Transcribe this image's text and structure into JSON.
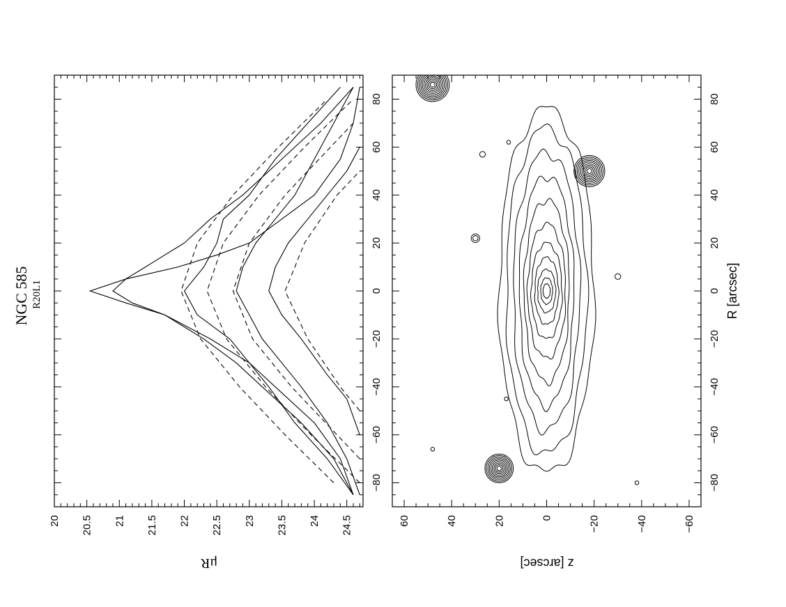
{
  "figure": {
    "title": "NGC 585",
    "subtitle": "R20L1"
  },
  "chart_data": [
    {
      "type": "line",
      "panel": "surface-brightness-profiles",
      "x_label": "R [arcsec]",
      "y_label": "μR",
      "xlim": [
        -90,
        90
      ],
      "ylim": [
        20,
        24.75
      ],
      "y_inverted": true,
      "x_ticks": [
        -80,
        -60,
        -40,
        -20,
        0,
        20,
        40,
        60,
        80
      ],
      "y_ticks": [
        20,
        20.5,
        21,
        21.5,
        22,
        22.5,
        23,
        23.5,
        24,
        24.5
      ],
      "grid": false,
      "series": [
        {
          "style": "solid",
          "x": [
            -85,
            -70,
            -55,
            -40,
            -30,
            -20,
            -10,
            -5,
            0,
            5,
            10,
            15,
            20,
            30,
            40,
            55,
            70,
            85
          ],
          "y": [
            24.6,
            24.4,
            24.0,
            23.4,
            23.0,
            22.4,
            21.7,
            21.1,
            20.55,
            21.1,
            21.9,
            22.5,
            23.0,
            23.5,
            24.0,
            24.4,
            24.6,
            24.7
          ]
        },
        {
          "style": "solid",
          "x": [
            -85,
            -70,
            -55,
            -40,
            -30,
            -20,
            -10,
            -5,
            0,
            5,
            10,
            15,
            20,
            30,
            40,
            55,
            70,
            85
          ],
          "y": [
            24.6,
            24.3,
            23.8,
            23.2,
            22.8,
            22.3,
            21.7,
            21.2,
            20.9,
            21.1,
            21.4,
            21.7,
            22.0,
            22.4,
            22.9,
            23.5,
            24.1,
            24.6
          ]
        },
        {
          "style": "solid",
          "x": [
            -85,
            -70,
            -55,
            -40,
            -30,
            -20,
            -10,
            0,
            10,
            20,
            30,
            40,
            55,
            70,
            85
          ],
          "y": [
            24.6,
            24.2,
            23.7,
            23.3,
            23.0,
            22.7,
            22.2,
            22.0,
            22.3,
            22.5,
            22.6,
            23.0,
            23.4,
            23.9,
            24.4
          ]
        },
        {
          "style": "solid",
          "x": [
            -85,
            -70,
            -55,
            -40,
            -30,
            -20,
            -10,
            0,
            10,
            20,
            30,
            40,
            55,
            70,
            85
          ],
          "y": [
            24.7,
            24.5,
            24.2,
            23.8,
            23.5,
            23.2,
            23.0,
            22.8,
            22.9,
            23.1,
            23.4,
            23.7,
            24.0,
            24.3,
            24.6
          ]
        },
        {
          "style": "solid",
          "x": [
            -60,
            -45,
            -35,
            -20,
            -10,
            0,
            10,
            20,
            30,
            40,
            50,
            60
          ],
          "y": [
            24.7,
            24.5,
            24.2,
            23.8,
            23.5,
            23.3,
            23.4,
            23.6,
            23.9,
            24.2,
            24.5,
            24.7
          ]
        },
        {
          "style": "dashed",
          "x": [
            -80,
            -60,
            -40,
            -20,
            0,
            20,
            40,
            60,
            80
          ],
          "y": [
            24.3,
            23.55,
            22.85,
            22.25,
            21.95,
            22.2,
            22.75,
            23.45,
            24.2
          ]
        },
        {
          "style": "dashed",
          "x": [
            -80,
            -60,
            -40,
            -20,
            0,
            20,
            40,
            60,
            80
          ],
          "y": [
            24.7,
            23.95,
            23.25,
            22.65,
            22.35,
            22.6,
            23.15,
            23.85,
            24.6
          ]
        },
        {
          "style": "dashed",
          "x": [
            -70,
            -60,
            -40,
            -20,
            0,
            20,
            40,
            60,
            70
          ],
          "y": [
            24.7,
            24.35,
            23.65,
            23.05,
            22.75,
            23.0,
            23.55,
            24.25,
            24.6
          ]
        },
        {
          "style": "dashed",
          "x": [
            -50,
            -40,
            -20,
            0,
            20,
            40,
            50
          ],
          "y": [
            24.7,
            24.4,
            23.9,
            23.55,
            23.85,
            24.35,
            24.7
          ]
        }
      ]
    },
    {
      "type": "contour",
      "panel": "isophote-map",
      "x_label": "R [arcsec]",
      "y_label": "z [arcsec]",
      "xlim": [
        -90,
        90
      ],
      "ylim": [
        -65,
        65
      ],
      "x_ticks": [
        -80,
        -60,
        -40,
        -20,
        0,
        20,
        40,
        60,
        80
      ],
      "y_ticks": [
        -60,
        -40,
        -20,
        0,
        20,
        40,
        60
      ],
      "grid": false,
      "galaxy_isophotes": [
        {
          "a": 76,
          "b": 20
        },
        {
          "a": 68,
          "b": 17
        },
        {
          "a": 58,
          "b": 14
        },
        {
          "a": 48,
          "b": 11.5
        },
        {
          "a": 38,
          "b": 9.5
        },
        {
          "a": 28,
          "b": 8
        },
        {
          "a": 20,
          "b": 6.5
        },
        {
          "a": 14,
          "b": 5
        },
        {
          "a": 9,
          "b": 3.8
        },
        {
          "a": 5.5,
          "b": 2.5
        },
        {
          "a": 3,
          "b": 1.5
        }
      ],
      "stars": [
        {
          "x": 86,
          "z": 48,
          "levels": 10,
          "r": 7
        },
        {
          "x": 50,
          "z": -18,
          "levels": 9,
          "r": 6.5
        },
        {
          "x": -74,
          "z": 20,
          "levels": 9,
          "r": 6
        },
        {
          "x": 22,
          "z": 30,
          "levels": 2,
          "r": 1.8
        },
        {
          "x": 57,
          "z": 27,
          "levels": 1,
          "r": 1.2
        },
        {
          "x": 6,
          "z": -30,
          "levels": 1,
          "r": 1.2
        },
        {
          "x": -80,
          "z": -38,
          "levels": 1,
          "r": 0.8
        },
        {
          "x": -66,
          "z": 48,
          "levels": 1,
          "r": 0.8
        },
        {
          "x": -45,
          "z": 17,
          "levels": 1,
          "r": 0.8
        },
        {
          "x": 62,
          "z": 16,
          "levels": 1,
          "r": 0.8
        }
      ]
    }
  ]
}
